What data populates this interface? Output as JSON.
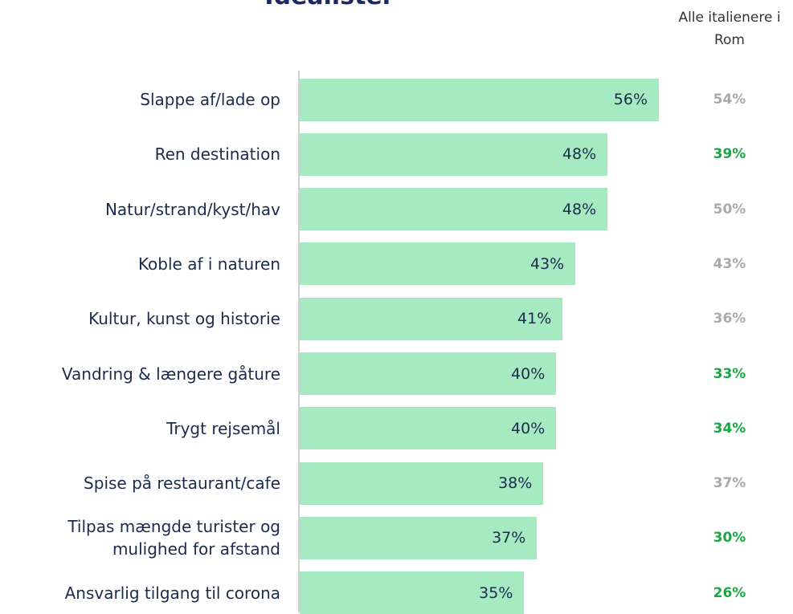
{
  "chart_data": {
    "type": "bar",
    "orientation": "horizontal",
    "title": "Idealister",
    "categories": [
      "Slappe af/lade op",
      "Ren destination",
      "Natur/strand/kyst/hav",
      "Koble af i naturen",
      "Kultur, kunst og historie",
      "Vandring & længere gåture",
      "Trygt rejsemål",
      "Spise på restaurant/cafe",
      "Tilpas mængde turister og\nmulighed for afstand",
      "Ansvarlig tilgang til corona"
    ],
    "values": [
      56,
      48,
      48,
      43,
      41,
      40,
      40,
      38,
      37,
      35
    ],
    "value_labels": [
      "56%",
      "48%",
      "48%",
      "43%",
      "41%",
      "40%",
      "40%",
      "38%",
      "37%",
      "35%"
    ],
    "color": "#a6eac2",
    "comparison": {
      "name": "Alle italienere i\nRom",
      "values": [
        54,
        39,
        50,
        43,
        36,
        33,
        34,
        37,
        30,
        26
      ],
      "value_labels": [
        "54%",
        "39%",
        "50%",
        "43%",
        "36%",
        "33%",
        "34%",
        "37%",
        "30%",
        "26%"
      ],
      "colors": [
        "#a9a9a9",
        "#17a844",
        "#a9a9a9",
        "#a9a9a9",
        "#a9a9a9",
        "#17a844",
        "#17a844",
        "#a9a9a9",
        "#17a844",
        "#17a844"
      ]
    }
  }
}
